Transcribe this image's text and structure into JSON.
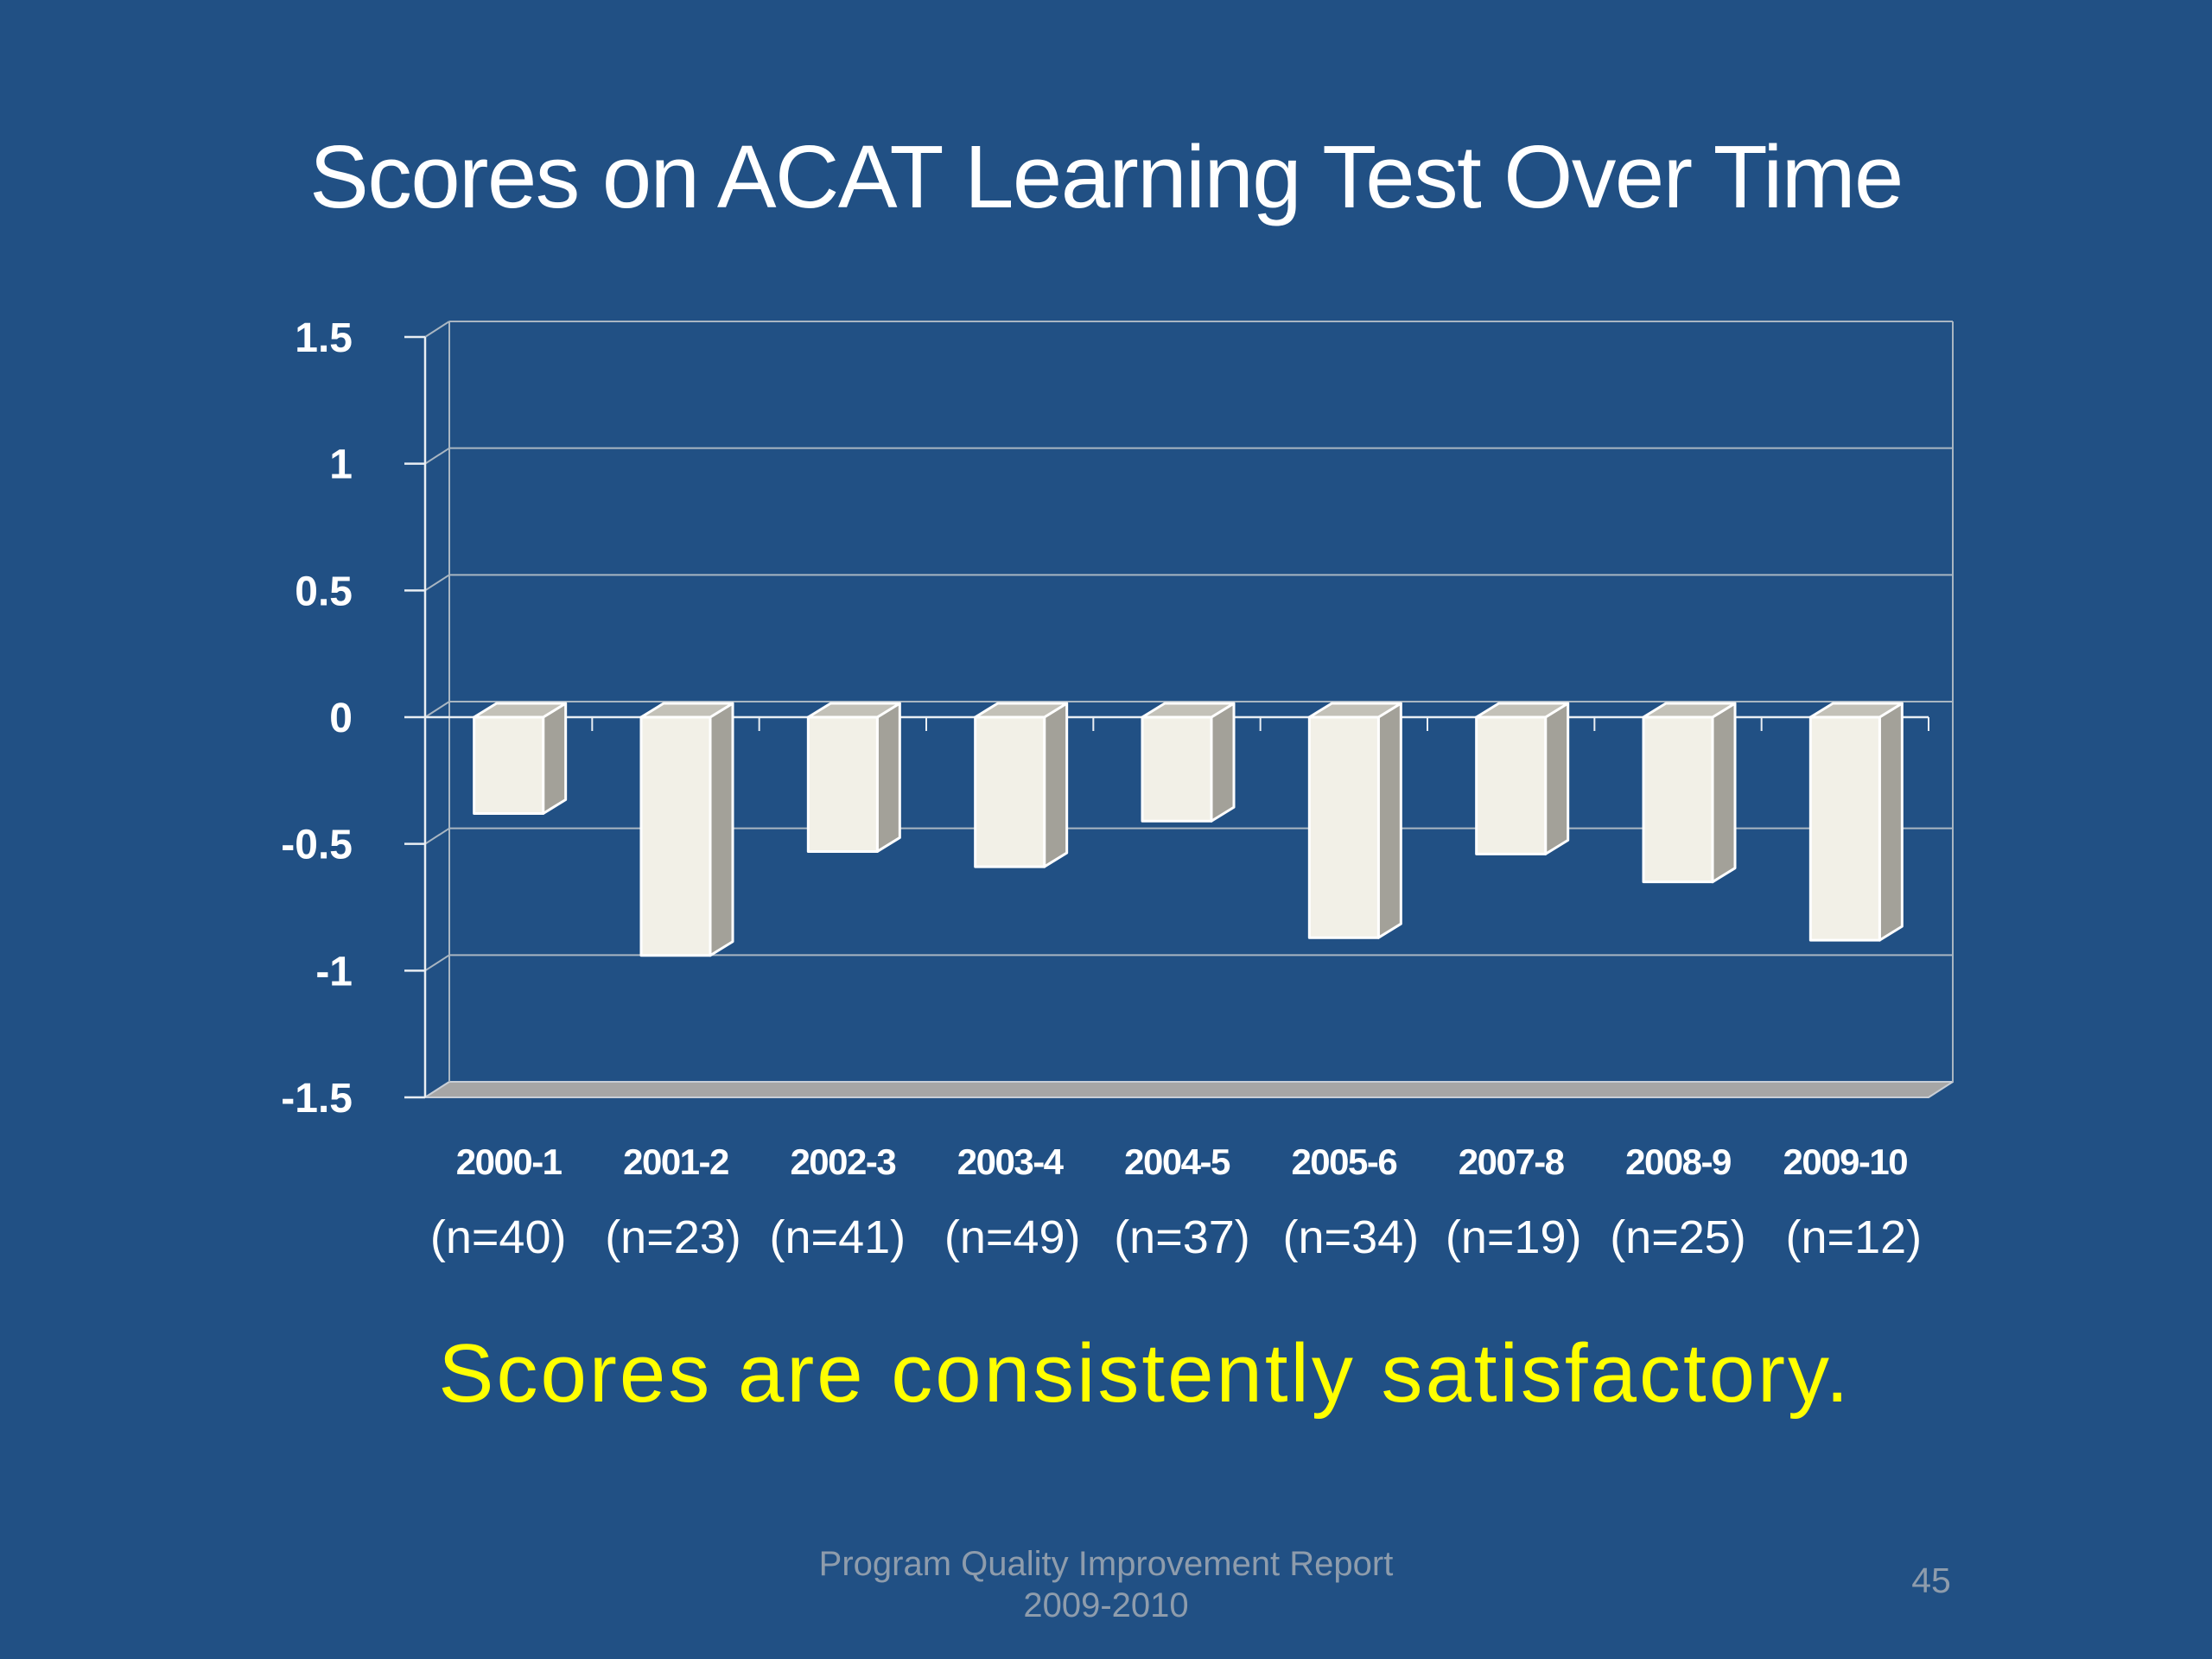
{
  "slide": {
    "title": "Scores on ACAT Learning Test Over Time",
    "caption": "Scores are consistently satisfactory.",
    "footer_line1": "Program Quality Improvement Report",
    "footer_line2": "2009-2010",
    "page_number": "45"
  },
  "colors": {
    "background": "#215084",
    "title_text": "#ffffff",
    "axis_text": "#ffffff",
    "caption_text": "#ffff00",
    "footer_text": "#8e9cac",
    "gridline": "#a9b6c2",
    "axis_line": "#e9eef3",
    "bar_front": "#f2f0e7",
    "bar_top": "#c3c1b8",
    "bar_side": "#a3a199",
    "bar_edge": "#ffffff",
    "floor_fill": "#a6a6a6",
    "floor_edge": "#c8ced6"
  },
  "chart_data": {
    "type": "bar",
    "projection": "3d",
    "title": "",
    "xlabel": "",
    "ylabel": "",
    "categories": [
      "2000-1",
      "2001-2",
      "2002-3",
      "2003-4",
      "2004-5",
      "2005-6",
      "2007-8",
      "2008-9",
      "2009-10"
    ],
    "sample_sizes": [
      "(n=40)",
      "(n=23)",
      "(n=41)",
      "(n=49)",
      "(n=37)",
      "(n=34)",
      "(n=19)",
      "(n=25)",
      "(n=12)"
    ],
    "values": [
      -0.38,
      -0.94,
      -0.53,
      -0.59,
      -0.41,
      -0.87,
      -0.54,
      -0.65,
      -0.88
    ],
    "ylim": [
      -1.5,
      1.5
    ],
    "ytick_step": 0.5,
    "ytick_labels": [
      "1.5",
      "1",
      "0.5",
      "0",
      "-0.5",
      "-1",
      "-1.5"
    ],
    "grid": true,
    "legend": false
  }
}
